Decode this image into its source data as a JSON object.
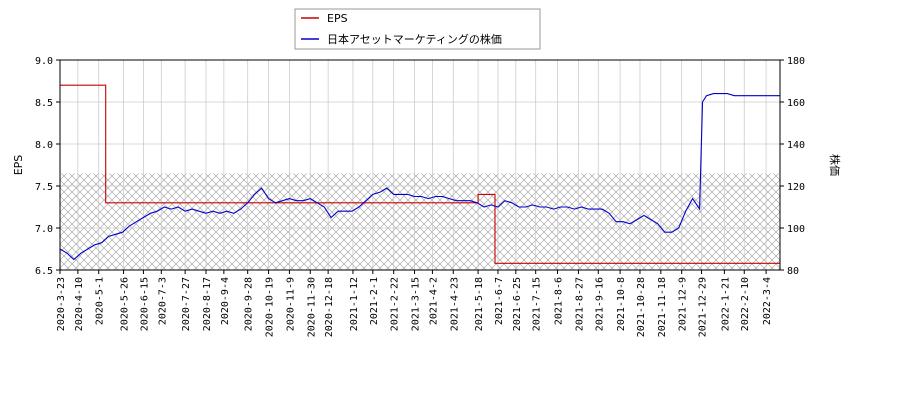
{
  "chart_data": {
    "type": "line",
    "title": "",
    "legend": {
      "placement": "top-center",
      "entries": [
        {
          "label": "EPS",
          "color": "#cc0000"
        },
        {
          "label": "日本アセットマーケティングの株価",
          "color": "#0000cc"
        }
      ]
    },
    "y_left": {
      "label": "EPS",
      "lim": [
        6.5,
        9.0
      ],
      "ticks": [
        "6.5",
        "7.0",
        "7.5",
        "8.0",
        "8.5",
        "9.0"
      ]
    },
    "y_right": {
      "label": "株価",
      "lim": [
        80,
        180
      ],
      "ticks": [
        "80",
        "100",
        "120",
        "140",
        "160",
        "180"
      ]
    },
    "x_ticks": [
      "2020-3-23",
      "2020-4-10",
      "2020-5-1",
      "2020-5-26",
      "2020-6-15",
      "2020-7-3",
      "2020-7-27",
      "2020-8-17",
      "2020-9-4",
      "2020-9-28",
      "2020-10-19",
      "2020-11-9",
      "2020-11-30",
      "2020-12-18",
      "2021-1-12",
      "2021-2-1",
      "2021-2-22",
      "2021-3-15",
      "2021-4-2",
      "2021-4-23",
      "2021-5-18",
      "2021-6-7",
      "2021-6-25",
      "2021-7-15",
      "2021-8-6",
      "2021-8-27",
      "2021-9-16",
      "2021-10-8",
      "2021-10-28",
      "2021-11-18",
      "2021-12-9",
      "2021-12-29",
      "2022-1-21",
      "2022-2-10",
      "2022-3-4"
    ],
    "x_range": [
      "2020-3-23",
      "2022-3-18"
    ],
    "hatched_band_eps": [
      6.5,
      7.65
    ],
    "grid": true,
    "series": [
      {
        "name": "EPS",
        "color": "#cc0000",
        "axis": "left",
        "points": [
          [
            "2020-3-23",
            8.7
          ],
          [
            "2020-5-8",
            8.7
          ],
          [
            "2020-5-8",
            7.3
          ],
          [
            "2020-8-11",
            7.3
          ],
          [
            "2021-5-18",
            7.3
          ],
          [
            "2021-5-18",
            7.4
          ],
          [
            "2021-6-4",
            7.4
          ],
          [
            "2021-6-4",
            6.58
          ],
          [
            "2022-3-18",
            6.58
          ]
        ]
      },
      {
        "name": "日本アセットマーケティングの株価",
        "color": "#0000cc",
        "axis": "right",
        "points": [
          [
            "2020-3-23",
            90
          ],
          [
            "2020-3-30",
            88
          ],
          [
            "2020-4-6",
            85
          ],
          [
            "2020-4-13",
            88
          ],
          [
            "2020-4-20",
            90
          ],
          [
            "2020-4-27",
            92
          ],
          [
            "2020-5-4",
            93
          ],
          [
            "2020-5-11",
            96
          ],
          [
            "2020-5-18",
            97
          ],
          [
            "2020-5-25",
            98
          ],
          [
            "2020-6-1",
            101
          ],
          [
            "2020-6-8",
            103
          ],
          [
            "2020-6-15",
            105
          ],
          [
            "2020-6-22",
            107
          ],
          [
            "2020-6-29",
            108
          ],
          [
            "2020-7-6",
            110
          ],
          [
            "2020-7-13",
            109
          ],
          [
            "2020-7-20",
            110
          ],
          [
            "2020-7-27",
            108
          ],
          [
            "2020-8-3",
            109
          ],
          [
            "2020-8-10",
            108
          ],
          [
            "2020-8-17",
            107
          ],
          [
            "2020-8-24",
            108
          ],
          [
            "2020-8-31",
            107
          ],
          [
            "2020-9-7",
            108
          ],
          [
            "2020-9-14",
            107
          ],
          [
            "2020-9-21",
            109
          ],
          [
            "2020-9-28",
            112
          ],
          [
            "2020-10-5",
            116
          ],
          [
            "2020-10-12",
            119
          ],
          [
            "2020-10-19",
            114
          ],
          [
            "2020-10-26",
            112
          ],
          [
            "2020-11-2",
            113
          ],
          [
            "2020-11-9",
            114
          ],
          [
            "2020-11-16",
            113
          ],
          [
            "2020-11-23",
            113
          ],
          [
            "2020-11-30",
            114
          ],
          [
            "2020-12-7",
            112
          ],
          [
            "2020-12-14",
            110
          ],
          [
            "2020-12-21",
            105
          ],
          [
            "2020-12-28",
            108
          ],
          [
            "2021-1-4",
            108
          ],
          [
            "2021-1-11",
            108
          ],
          [
            "2021-1-18",
            110
          ],
          [
            "2021-1-25",
            113
          ],
          [
            "2021-2-1",
            116
          ],
          [
            "2021-2-8",
            117
          ],
          [
            "2021-2-15",
            119
          ],
          [
            "2021-2-22",
            116
          ],
          [
            "2021-3-1",
            116
          ],
          [
            "2021-3-8",
            116
          ],
          [
            "2021-3-15",
            115
          ],
          [
            "2021-3-22",
            115
          ],
          [
            "2021-3-29",
            114
          ],
          [
            "2021-4-5",
            115
          ],
          [
            "2021-4-12",
            115
          ],
          [
            "2021-4-19",
            114
          ],
          [
            "2021-4-26",
            113
          ],
          [
            "2021-5-3",
            113
          ],
          [
            "2021-5-10",
            113
          ],
          [
            "2021-5-17",
            112
          ],
          [
            "2021-5-24",
            110
          ],
          [
            "2021-5-31",
            111
          ],
          [
            "2021-6-7",
            110
          ],
          [
            "2021-6-14",
            113
          ],
          [
            "2021-6-21",
            112
          ],
          [
            "2021-6-28",
            110
          ],
          [
            "2021-7-5",
            110
          ],
          [
            "2021-7-12",
            111
          ],
          [
            "2021-7-19",
            110
          ],
          [
            "2021-7-26",
            110
          ],
          [
            "2021-8-2",
            109
          ],
          [
            "2021-8-9",
            110
          ],
          [
            "2021-8-16",
            110
          ],
          [
            "2021-8-23",
            109
          ],
          [
            "2021-8-30",
            110
          ],
          [
            "2021-9-6",
            109
          ],
          [
            "2021-9-13",
            109
          ],
          [
            "2021-9-20",
            109
          ],
          [
            "2021-9-27",
            107
          ],
          [
            "2021-10-4",
            103
          ],
          [
            "2021-10-11",
            103
          ],
          [
            "2021-10-18",
            102
          ],
          [
            "2021-10-25",
            104
          ],
          [
            "2021-11-1",
            106
          ],
          [
            "2021-11-8",
            104
          ],
          [
            "2021-11-15",
            102
          ],
          [
            "2021-11-22",
            98
          ],
          [
            "2021-11-29",
            98
          ],
          [
            "2021-12-6",
            100
          ],
          [
            "2021-12-13",
            108
          ],
          [
            "2021-12-20",
            114
          ],
          [
            "2021-12-27",
            109
          ],
          [
            "2021-12-30",
            160
          ],
          [
            "2022-1-3",
            163
          ],
          [
            "2022-1-10",
            164
          ],
          [
            "2022-1-17",
            164
          ],
          [
            "2022-1-24",
            164
          ],
          [
            "2022-1-31",
            163
          ],
          [
            "2022-2-7",
            163
          ],
          [
            "2022-2-14",
            163
          ],
          [
            "2022-2-21",
            163
          ],
          [
            "2022-2-28",
            163
          ],
          [
            "2022-3-7",
            163
          ],
          [
            "2022-3-18",
            163
          ]
        ]
      }
    ]
  }
}
